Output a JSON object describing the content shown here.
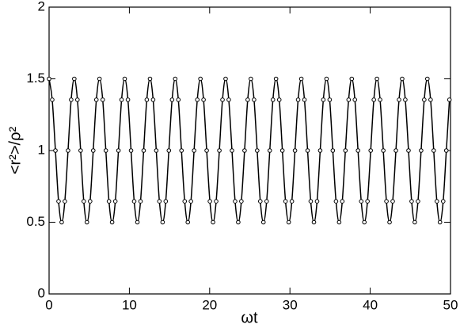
{
  "chart_data": {
    "type": "line",
    "xlabel": "ωt",
    "ylabel": "<r²>/ρ²",
    "xlim": [
      0,
      50
    ],
    "ylim": [
      0,
      2
    ],
    "xticks": [
      0,
      10,
      20,
      30,
      40,
      50
    ],
    "yticks": [
      0,
      {
        "value": 0.5,
        "label": "0.5"
      },
      1,
      {
        "value": 1.5,
        "label": "1.5"
      },
      2
    ],
    "marker": "circle",
    "x": [
      0,
      0.39,
      0.79,
      1.18,
      1.57,
      1.96,
      2.36,
      2.75,
      3.14,
      3.53,
      3.93,
      4.32,
      4.71,
      5.11,
      5.5,
      5.89,
      6.28,
      6.68,
      7.07,
      7.46,
      7.85,
      8.25,
      8.64,
      9.03,
      9.42,
      9.82,
      10.21,
      10.6,
      11.0,
      11.39,
      11.78,
      12.17,
      12.57,
      12.96,
      13.35,
      13.74,
      14.14,
      14.53,
      14.92,
      15.32,
      15.71,
      16.1,
      16.49,
      16.89,
      17.28,
      17.67,
      18.06,
      18.46,
      18.85,
      19.24,
      19.63,
      20.03,
      20.42,
      20.81,
      21.21,
      21.6,
      21.99,
      22.38,
      22.78,
      23.17,
      23.56,
      23.95,
      24.35,
      24.74,
      25.13,
      25.53,
      25.92,
      26.31,
      26.7,
      27.1,
      27.49,
      27.88,
      28.27,
      28.67,
      29.06,
      29.45,
      29.85,
      30.24,
      30.63,
      31.02,
      31.42,
      31.81,
      32.2,
      32.59,
      32.99,
      33.38,
      33.77,
      34.16,
      34.56,
      34.95,
      35.34,
      35.74,
      36.13,
      36.52,
      36.91,
      37.31,
      37.7,
      38.09,
      38.48,
      38.88,
      39.27,
      39.66,
      40.06,
      40.45,
      40.84,
      41.23,
      41.63,
      42.02,
      42.41,
      42.8,
      43.2,
      43.59,
      43.98,
      44.37,
      44.77,
      45.16,
      45.55,
      45.95,
      46.34,
      46.73,
      47.12,
      47.52,
      47.91,
      48.3,
      48.69,
      49.09,
      49.48,
      49.87
    ],
    "series": [
      {
        "color": "#000000",
        "values": [
          1.5,
          1.354,
          1,
          0.646,
          0.5,
          0.646,
          1,
          1.354,
          1.5,
          1.354,
          1,
          0.646,
          0.5,
          0.646,
          1,
          1.354,
          1.5,
          1.354,
          1,
          0.646,
          0.5,
          0.646,
          1,
          1.354,
          1.5,
          1.354,
          1,
          0.646,
          0.5,
          0.646,
          1,
          1.354,
          1.5,
          1.354,
          1,
          0.646,
          0.5,
          0.646,
          1,
          1.354,
          1.5,
          1.354,
          1,
          0.646,
          0.5,
          0.646,
          1,
          1.354,
          1.5,
          1.354,
          1,
          0.646,
          0.5,
          0.646,
          1,
          1.354,
          1.5,
          1.354,
          1,
          0.646,
          0.5,
          0.646,
          1,
          1.354,
          1.5,
          1.354,
          1,
          0.646,
          0.5,
          0.646,
          1,
          1.354,
          1.5,
          1.354,
          1,
          0.646,
          0.5,
          0.646,
          1,
          1.354,
          1.5,
          1.354,
          1,
          0.646,
          0.5,
          0.646,
          1,
          1.354,
          1.5,
          1.354,
          1,
          0.646,
          0.5,
          0.646,
          1,
          1.354,
          1.5,
          1.354,
          1,
          0.646,
          0.5,
          0.646,
          1,
          1.354,
          1.5,
          1.354,
          1,
          0.646,
          0.5,
          0.646,
          1,
          1.354,
          1.5,
          1.354,
          1,
          0.646,
          0.5,
          0.646,
          1,
          1.354,
          1.5,
          1.354,
          1,
          0.646,
          0.5,
          0.646,
          1,
          1.354
        ]
      }
    ]
  }
}
